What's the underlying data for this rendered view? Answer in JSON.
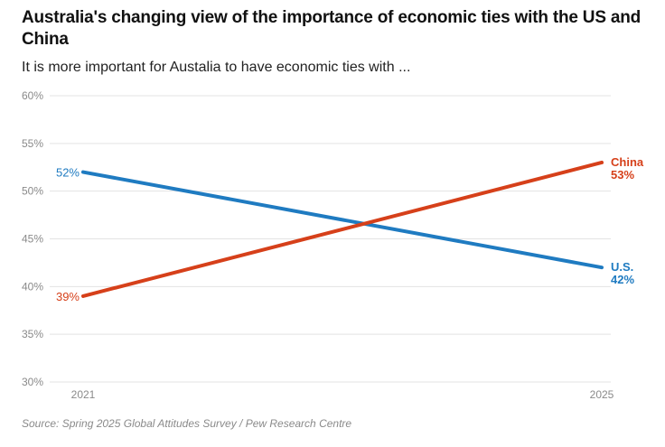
{
  "title": "Australia's changing view of the importance of economic ties with the US and China",
  "subtitle": "It is more important for Austalia to have economic ties with ...",
  "source": "Source: Spring 2025 Global Attitudes Survey / Pew Research Centre",
  "chart_data": {
    "type": "line",
    "title": "Australia's changing view of the importance of economic ties with the US and China",
    "subtitle": "It is more important for Austalia to have economic ties with ...",
    "x": [
      "2021",
      "2025"
    ],
    "ylim": [
      30,
      60
    ],
    "yticks": [
      30,
      35,
      40,
      45,
      50,
      55,
      60
    ],
    "ytick_labels": [
      "30%",
      "35%",
      "40%",
      "45%",
      "50%",
      "55%",
      "60%"
    ],
    "grid": true,
    "series": [
      {
        "name": "U.S.",
        "values": [
          52,
          42
        ],
        "start_label": "52%",
        "end_label": "42%",
        "color": "#1f7bc1"
      },
      {
        "name": "China",
        "values": [
          39,
          53
        ],
        "start_label": "39%",
        "end_label": "53%",
        "color": "#d6401a"
      }
    ]
  }
}
